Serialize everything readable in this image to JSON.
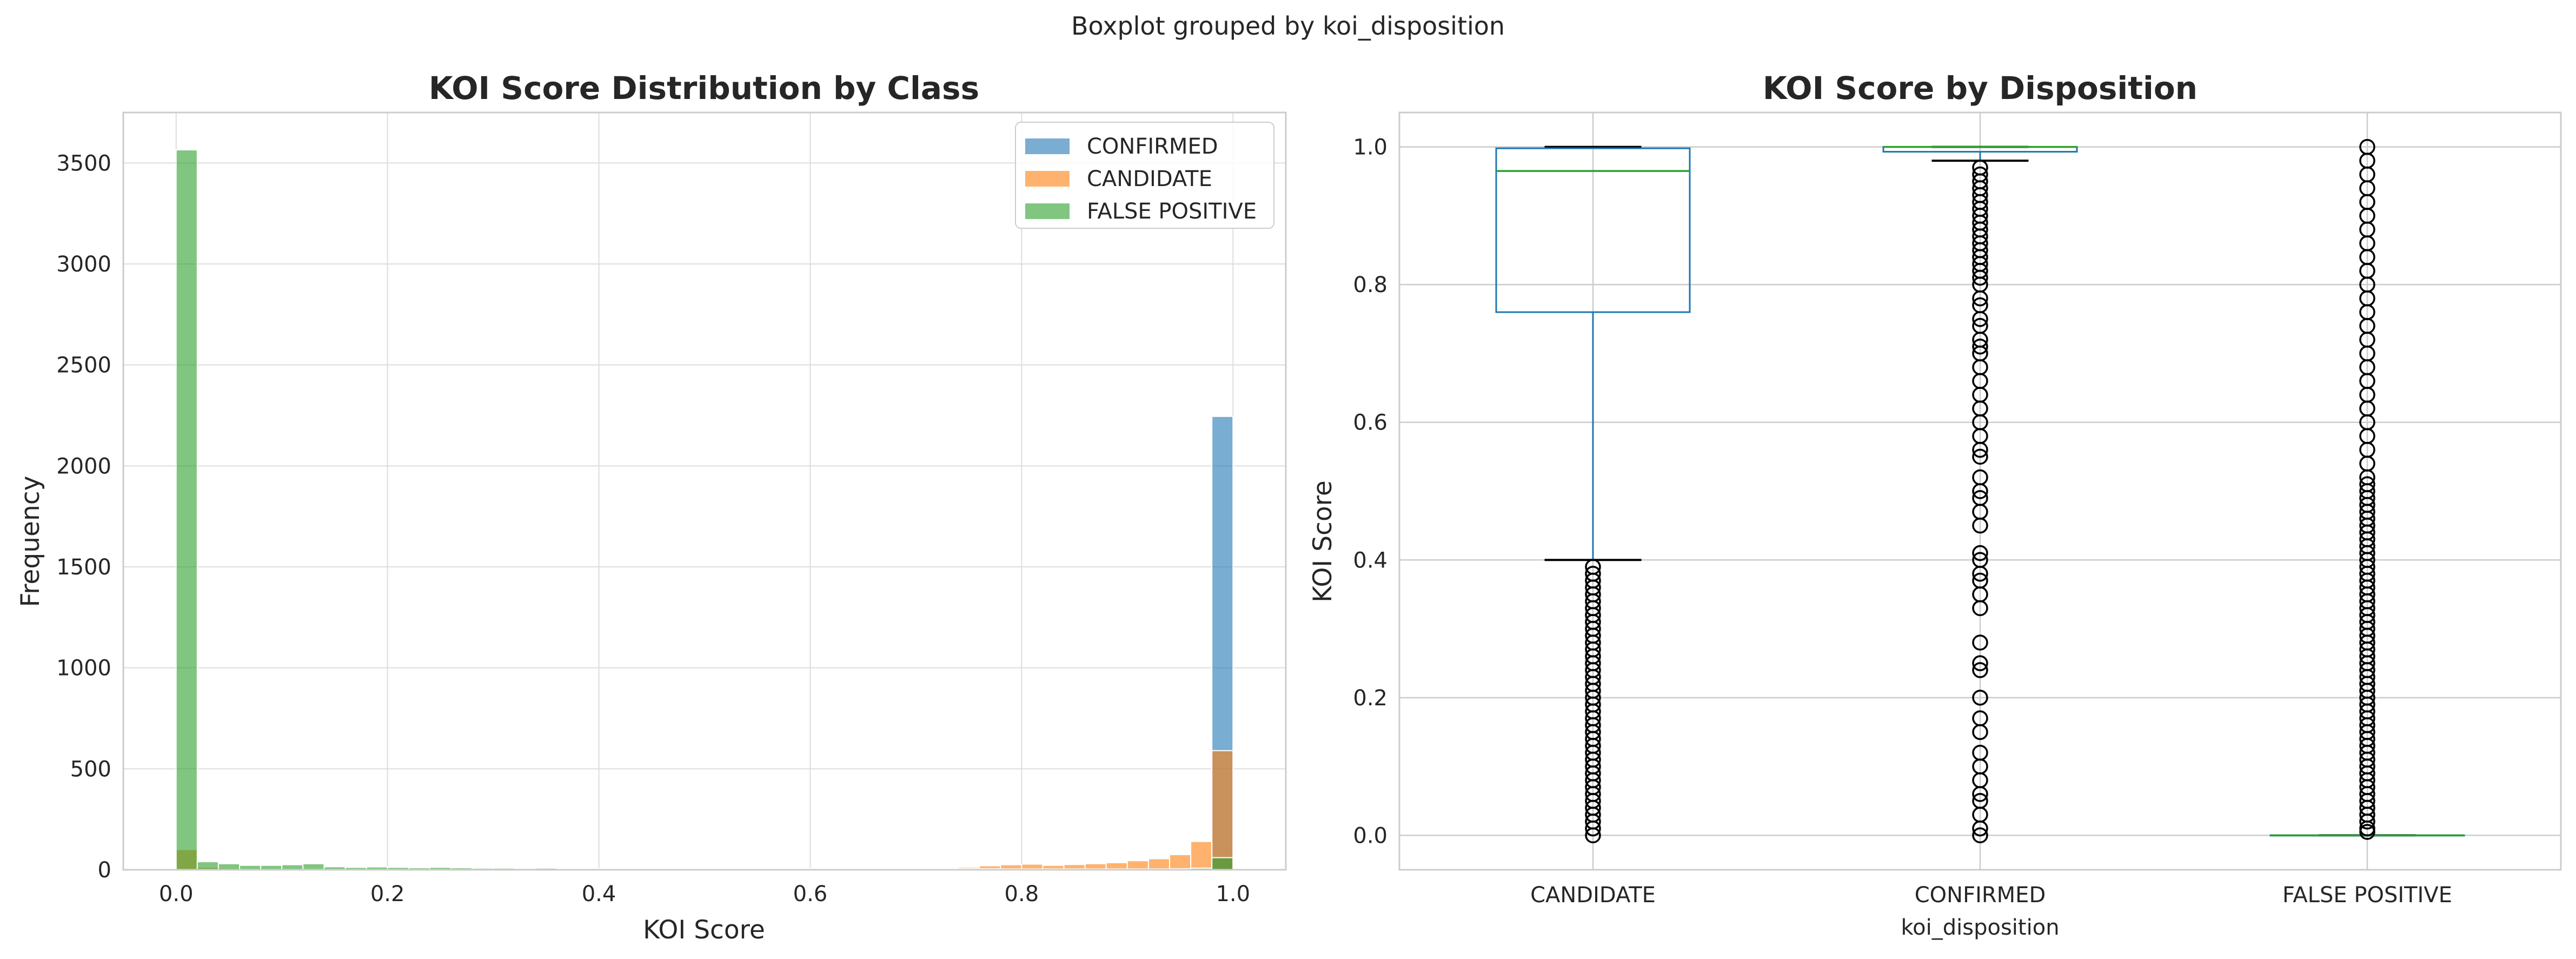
{
  "suptitle": "Boxplot grouped by koi_disposition",
  "colors": {
    "CONFIRMED": "#1f77b4",
    "CANDIDATE": "#ff7f0e",
    "FALSE POSITIVE": "#2ca02c",
    "box": "#1f77b4",
    "median": "#2ca02c",
    "grid": "#dddddd",
    "spine": "#cccccc"
  },
  "chart_data": [
    {
      "type": "histogram",
      "title": "KOI Score Distribution by Class",
      "xlabel": "KOI Score",
      "ylabel": "Frequency",
      "xlim": [
        -0.05,
        1.05
      ],
      "ylim": [
        0,
        3750
      ],
      "xticks": [
        0.0,
        0.2,
        0.4,
        0.6,
        0.8,
        1.0
      ],
      "xtick_labels": [
        "0.0",
        "0.2",
        "0.4",
        "0.6",
        "0.8",
        "1.0"
      ],
      "yticks": [
        0,
        500,
        1000,
        1500,
        2000,
        2500,
        3000,
        3500
      ],
      "ytick_labels": [
        "0",
        "500",
        "1000",
        "1500",
        "2000",
        "2500",
        "3000",
        "3500"
      ],
      "grid": true,
      "legend_placement": "upper right",
      "alpha": 0.6,
      "bins": 50,
      "bin_start": 0.0,
      "bin_width": 0.02,
      "series": [
        {
          "name": "CONFIRMED",
          "values": [
            5,
            0,
            0,
            0,
            0,
            0,
            0,
            0,
            0,
            0,
            0,
            0,
            0,
            0,
            0,
            0,
            0,
            0,
            0,
            0,
            0,
            0,
            0,
            0,
            0,
            0,
            0,
            0,
            0,
            0,
            0,
            0,
            0,
            0,
            0,
            0,
            0,
            0,
            0,
            0,
            0,
            0,
            0,
            0,
            0,
            0,
            0,
            0,
            0,
            2245
          ]
        },
        {
          "name": "CANDIDATE",
          "values": [
            100,
            12,
            8,
            6,
            6,
            5,
            5,
            4,
            4,
            4,
            3,
            3,
            3,
            3,
            3,
            2,
            2,
            2,
            3,
            3,
            3,
            3,
            3,
            3,
            3,
            4,
            4,
            4,
            4,
            5,
            6,
            6,
            6,
            6,
            7,
            6,
            8,
            12,
            20,
            25,
            28,
            22,
            26,
            30,
            35,
            45,
            55,
            75,
            140,
            590
          ]
        },
        {
          "name": "FALSE POSITIVE",
          "values": [
            3565,
            40,
            30,
            22,
            22,
            25,
            30,
            15,
            12,
            14,
            12,
            10,
            12,
            10,
            8,
            8,
            7,
            8,
            6,
            6,
            5,
            5,
            5,
            5,
            5,
            4,
            4,
            4,
            4,
            4,
            4,
            4,
            4,
            4,
            4,
            5,
            5,
            5,
            5,
            4,
            4,
            4,
            4,
            4,
            4,
            4,
            4,
            5,
            8,
            60
          ]
        }
      ]
    },
    {
      "type": "boxplot",
      "title": "KOI Score by Disposition",
      "xlabel": "koi_disposition",
      "ylabel": "KOI Score",
      "categories": [
        "CANDIDATE",
        "CONFIRMED",
        "FALSE POSITIVE"
      ],
      "ylim": [
        -0.05,
        1.05
      ],
      "yticks": [
        0.0,
        0.2,
        0.4,
        0.6,
        0.8,
        1.0
      ],
      "ytick_labels": [
        "0.0",
        "0.2",
        "0.4",
        "0.6",
        "0.8",
        "1.0"
      ],
      "grid": true,
      "boxes": [
        {
          "category": "CANDIDATE",
          "whisker_low": 0.4,
          "q1": 0.76,
          "median": 0.965,
          "q3": 0.998,
          "whisker_high": 1.0,
          "outliers": [
            0.0,
            0.01,
            0.02,
            0.03,
            0.04,
            0.05,
            0.06,
            0.07,
            0.08,
            0.09,
            0.1,
            0.11,
            0.12,
            0.13,
            0.14,
            0.15,
            0.16,
            0.17,
            0.18,
            0.19,
            0.2,
            0.21,
            0.22,
            0.23,
            0.24,
            0.25,
            0.26,
            0.27,
            0.28,
            0.29,
            0.3,
            0.31,
            0.32,
            0.33,
            0.34,
            0.35,
            0.36,
            0.37,
            0.38,
            0.39
          ]
        },
        {
          "category": "CONFIRMED",
          "whisker_low": 0.98,
          "q1": 0.993,
          "median": 1.0,
          "q3": 1.0,
          "whisker_high": 1.0,
          "outliers": [
            0.0,
            0.01,
            0.03,
            0.05,
            0.06,
            0.08,
            0.1,
            0.12,
            0.15,
            0.17,
            0.2,
            0.24,
            0.25,
            0.28,
            0.33,
            0.35,
            0.37,
            0.38,
            0.4,
            0.41,
            0.45,
            0.47,
            0.49,
            0.5,
            0.52,
            0.55,
            0.56,
            0.58,
            0.6,
            0.62,
            0.64,
            0.66,
            0.68,
            0.7,
            0.71,
            0.72,
            0.74,
            0.75,
            0.77,
            0.78,
            0.8,
            0.81,
            0.82,
            0.83,
            0.84,
            0.85,
            0.86,
            0.87,
            0.88,
            0.89,
            0.9,
            0.91,
            0.92,
            0.93,
            0.94,
            0.95,
            0.96,
            0.97
          ]
        },
        {
          "category": "FALSE POSITIVE",
          "whisker_low": 0.0,
          "q1": 0.0,
          "median": 0.0,
          "q3": 0.0,
          "whisker_high": 0.0,
          "outliers": [
            0.005,
            0.01,
            0.02,
            0.03,
            0.04,
            0.05,
            0.06,
            0.07,
            0.08,
            0.09,
            0.1,
            0.11,
            0.12,
            0.13,
            0.14,
            0.15,
            0.16,
            0.17,
            0.18,
            0.19,
            0.2,
            0.21,
            0.22,
            0.23,
            0.24,
            0.25,
            0.26,
            0.27,
            0.28,
            0.29,
            0.3,
            0.31,
            0.32,
            0.33,
            0.34,
            0.35,
            0.36,
            0.37,
            0.38,
            0.39,
            0.4,
            0.41,
            0.42,
            0.43,
            0.44,
            0.45,
            0.46,
            0.47,
            0.48,
            0.49,
            0.5,
            0.51,
            0.52,
            0.54,
            0.56,
            0.58,
            0.6,
            0.62,
            0.64,
            0.66,
            0.68,
            0.7,
            0.72,
            0.74,
            0.76,
            0.78,
            0.8,
            0.82,
            0.84,
            0.86,
            0.88,
            0.9,
            0.92,
            0.94,
            0.96,
            0.98,
            1.0
          ]
        }
      ]
    }
  ]
}
